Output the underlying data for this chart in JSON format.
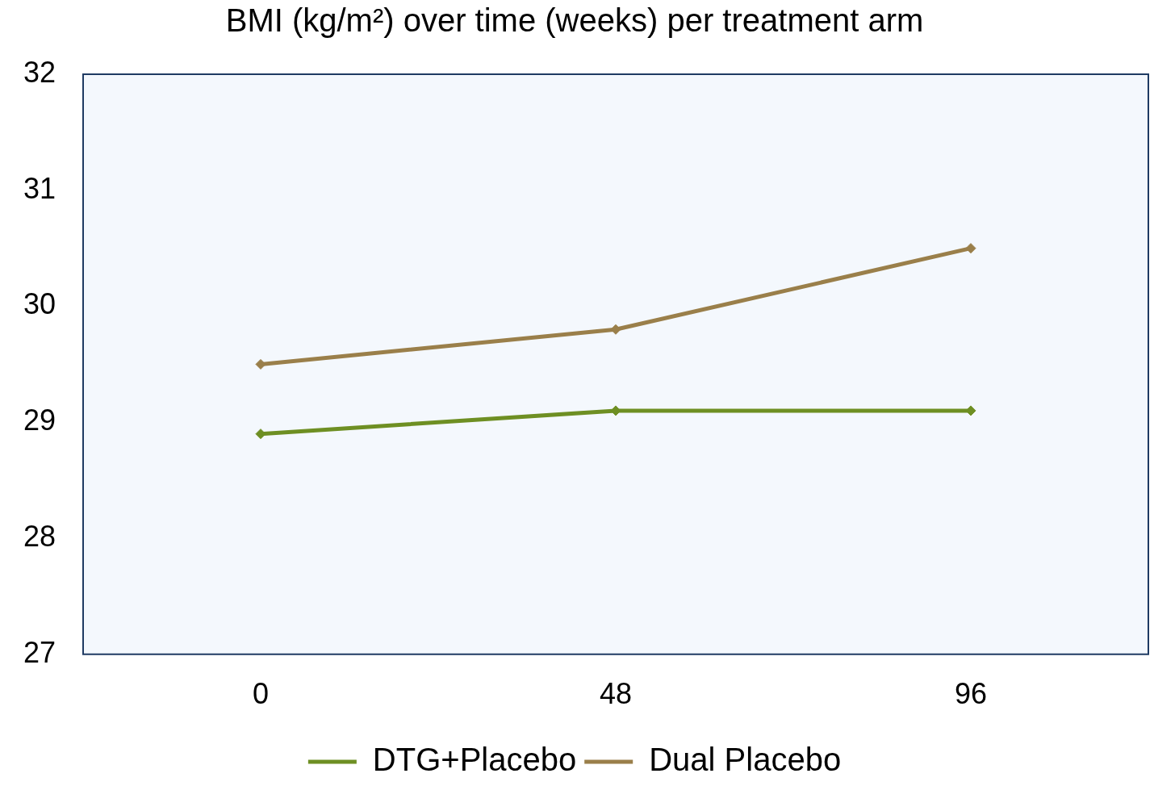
{
  "chart_data": {
    "type": "line",
    "title": "BMI (kg/m²) over time (weeks) per treatment arm",
    "categories": [
      "0",
      "48",
      "96"
    ],
    "series": [
      {
        "name": "DTG+Placebo",
        "color": "#6e8f23",
        "values": [
          28.9,
          29.1,
          29.1
        ]
      },
      {
        "name": "Dual Placebo",
        "color": "#9a7f4a",
        "values": [
          29.5,
          29.8,
          30.5
        ]
      }
    ],
    "ylim": [
      27,
      32
    ],
    "yticks": [
      27,
      28,
      29,
      30,
      31,
      32
    ],
    "grid": false,
    "legend": "bottom",
    "marker": "diamond",
    "line_style": "solid"
  }
}
